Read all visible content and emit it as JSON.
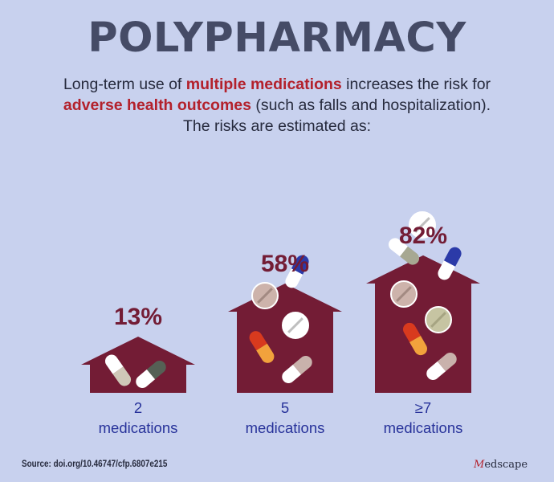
{
  "title": "POLYPHARMACY",
  "intro": {
    "line1_before": "Long-term use of ",
    "line1_highlight": "multiple medications",
    "line1_after": " increases the risk for",
    "line2_highlight": "adverse health outcomes",
    "line2_after": " (such as falls and hospitalization).",
    "line3": "The risks are estimated as:"
  },
  "colors": {
    "background": "#c8d1ee",
    "bar": "#731c35",
    "value_label": "#731c35",
    "category_label": "#27329a",
    "title": "#454b66",
    "highlight": "#b3212c"
  },
  "chart_data": {
    "type": "bar",
    "categories": [
      "2 medications",
      "5 medications",
      "≥7 medications"
    ],
    "category_lines": [
      [
        "2",
        "medications"
      ],
      [
        "5",
        "medications"
      ],
      [
        "≥7",
        "medications"
      ]
    ],
    "values": [
      13,
      58,
      82
    ],
    "value_labels": [
      "13%",
      "58%",
      "82%"
    ],
    "unit": "%",
    "ylim": [
      0,
      100
    ],
    "bar_shape": "house/arrow",
    "grid": false,
    "decorations": "pill-and-capsule-icons"
  },
  "source": "Source: doi.org/10.46747/cfp.6807e215",
  "brand": {
    "prefix": "M",
    "rest": "edscape"
  }
}
